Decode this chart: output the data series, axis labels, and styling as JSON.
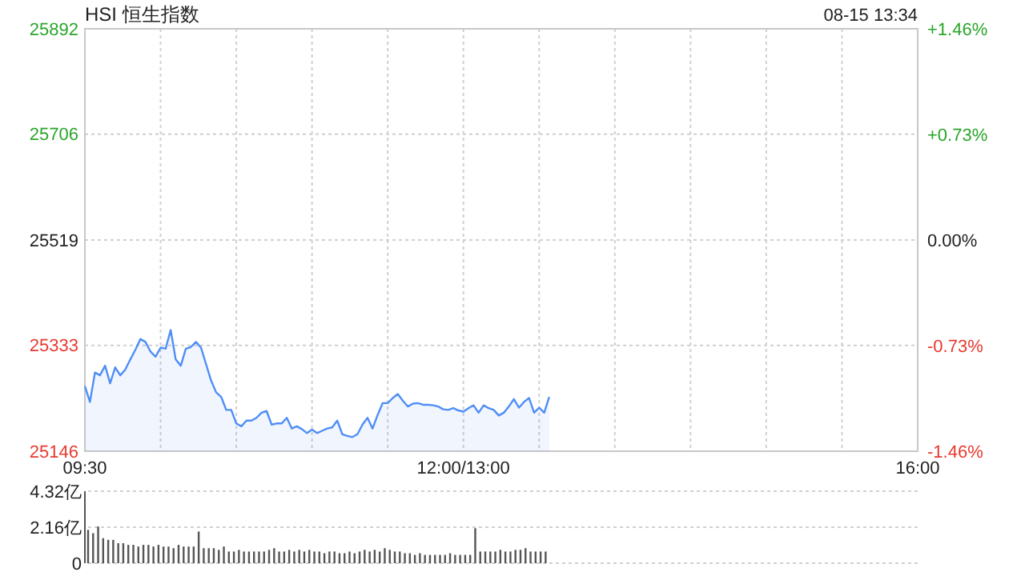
{
  "chart_data": [
    {
      "type": "area",
      "title": "HSI 恒生指数",
      "subtitle": "08-15 13:34",
      "categories": [
        "09:30",
        null,
        null,
        null,
        null,
        null,
        null,
        null,
        null,
        null,
        null,
        null,
        null,
        null,
        null,
        null,
        null,
        null,
        null,
        null,
        null,
        null,
        null,
        null,
        null,
        null,
        null,
        null,
        null,
        null,
        null,
        null,
        null,
        null,
        null,
        null,
        null,
        null,
        null,
        null,
        null,
        null,
        null,
        null,
        null,
        null,
        null,
        null,
        null,
        null,
        null,
        null,
        null,
        null,
        null,
        null,
        null,
        null,
        null,
        null,
        null,
        null,
        null,
        null,
        null,
        null,
        null,
        null,
        null,
        null,
        null,
        null,
        null,
        null,
        null,
        "12:00/13:00",
        null,
        null,
        null,
        null,
        null,
        null,
        null,
        null,
        null,
        null,
        null,
        null,
        null,
        null,
        null,
        null,
        null,
        null,
        null,
        null,
        null,
        null,
        null,
        null,
        null,
        null,
        null,
        null,
        null,
        null,
        null,
        null,
        null,
        null,
        null,
        null,
        null,
        null,
        null,
        null,
        null,
        null,
        null,
        null,
        null,
        null,
        null,
        null,
        null,
        null,
        null,
        null,
        null,
        null,
        null,
        null,
        null,
        null,
        null,
        null,
        null,
        null,
        null,
        null,
        null,
        null,
        null,
        null,
        null,
        null,
        null,
        null,
        null,
        null,
        null,
        null,
        null,
        null,
        null,
        null,
        null,
        null,
        null,
        null,
        null,
        null,
        null,
        null,
        null,
        "16:00"
      ],
      "ylim": [
        25146,
        25892
      ],
      "yticks": [
        25146,
        25333,
        25519,
        25706,
        25892
      ],
      "y2lim": [
        -1.46,
        1.46
      ],
      "y2ticks": [
        {
          "value": -1.46,
          "label": "-1.46%"
        },
        {
          "value": -0.73,
          "label": "-0.73%"
        },
        {
          "value": 0,
          "label": "0.00%"
        },
        {
          "value": 0.73,
          "label": "+0.73%"
        },
        {
          "value": 1.46,
          "label": "+1.46%"
        }
      ],
      "grid": true,
      "series": [
        {
          "color": "#4f8ef7",
          "values": [
            25261,
            25233,
            25285,
            25280,
            25297,
            25266,
            25294,
            25280,
            25290,
            25308,
            25325,
            25344,
            25339,
            25322,
            25313,
            25329,
            25327,
            25360,
            25308,
            25297,
            25327,
            25330,
            25339,
            25329,
            25300,
            25271,
            25250,
            25242,
            25219,
            25219,
            25195,
            25190,
            25200,
            25200,
            25205,
            25214,
            25217,
            25193,
            25195,
            25195,
            25205,
            25186,
            25190,
            25185,
            25178,
            25184,
            25178,
            25182,
            25186,
            25188,
            25200,
            25176,
            25173,
            25171,
            25176,
            25193,
            25205,
            25186,
            25210,
            25231,
            25231,
            25240,
            25247,
            25235,
            25225,
            25230,
            25231,
            25228,
            25228,
            25227,
            25225,
            25220,
            25219,
            25222,
            25218,
            25216,
            25222,
            25227,
            25214,
            25227,
            25222,
            25219,
            25209,
            25214,
            25225,
            25238,
            25223,
            25233,
            25240,
            25214,
            25223,
            25214,
            25242,
            null,
            null,
            null,
            null,
            null,
            null,
            null,
            null,
            null,
            null,
            null,
            null,
            null,
            null,
            null,
            null,
            null,
            null,
            null,
            null,
            null,
            null,
            null,
            null,
            null,
            null,
            null,
            null,
            null,
            null,
            null,
            null,
            null,
            null,
            null,
            null,
            null,
            null,
            null,
            null,
            null,
            null,
            null,
            null,
            null,
            null,
            null,
            null,
            null,
            null,
            null,
            null,
            null,
            null,
            null,
            null,
            null,
            null,
            null,
            null,
            null,
            null,
            null,
            null,
            null,
            null,
            null,
            null,
            null,
            null,
            null,
            null,
            null
          ]
        }
      ]
    },
    {
      "type": "bar",
      "categories": [
        null,
        null,
        null,
        null,
        null,
        null,
        null,
        null,
        null,
        null,
        null,
        null,
        null,
        null,
        null,
        null,
        null,
        null,
        null,
        null,
        null,
        null,
        null,
        null,
        null,
        null,
        null,
        null,
        null,
        null,
        null,
        null,
        null,
        null,
        null,
        null,
        null,
        null,
        null,
        null,
        null,
        null,
        null,
        null,
        null,
        null,
        null,
        null,
        null,
        null,
        null,
        null,
        null,
        null,
        null,
        null,
        null,
        null,
        null,
        null,
        null,
        null,
        null,
        null,
        null,
        null,
        null,
        null,
        null,
        null,
        null,
        null,
        null,
        null,
        null,
        null,
        null,
        null,
        null,
        null,
        null,
        null,
        null,
        null,
        null,
        null,
        null,
        null,
        null,
        null,
        null,
        null,
        null,
        null,
        null,
        null,
        null,
        null,
        null,
        null,
        null,
        null,
        null,
        null,
        null,
        null,
        null,
        null,
        null,
        null,
        null,
        null,
        null,
        null,
        null,
        null,
        null,
        null,
        null,
        null,
        null,
        null,
        null,
        null,
        null,
        null,
        null,
        null,
        null,
        null,
        null,
        null,
        null,
        null,
        null,
        null,
        null,
        null,
        null,
        null,
        null,
        null,
        null,
        null,
        null,
        null,
        null,
        null,
        null,
        null,
        null,
        null,
        null,
        null,
        null,
        null,
        null,
        null,
        null,
        null,
        null,
        null,
        null,
        null,
        null,
        null
      ],
      "ylim": [
        0,
        4.32
      ],
      "yticks": [
        0,
        {
          "value": 2.16,
          "label": "2.16亿"
        },
        {
          "value": 4.32,
          "label": "4.32亿"
        }
      ],
      "grid": "y",
      "tick_labels": "y",
      "series": [
        {
          "color": "#555555",
          "values": [
            2.0,
            1.8,
            2.2,
            1.5,
            1.4,
            1.4,
            1.2,
            1.2,
            1.1,
            1.1,
            1.0,
            1.1,
            1.1,
            1.0,
            1.1,
            1.0,
            1.0,
            0.9,
            1.1,
            1.0,
            1.0,
            1.0,
            1.9,
            0.9,
            0.9,
            0.9,
            0.8,
            1.0,
            0.7,
            0.7,
            0.8,
            0.7,
            0.7,
            0.7,
            0.7,
            0.7,
            0.8,
            0.9,
            0.7,
            0.7,
            0.8,
            0.7,
            0.8,
            0.7,
            0.8,
            0.7,
            0.7,
            0.6,
            0.7,
            0.7,
            0.6,
            0.6,
            0.7,
            0.6,
            0.7,
            0.8,
            0.7,
            0.8,
            0.7,
            0.9,
            0.8,
            0.7,
            0.7,
            0.6,
            0.6,
            0.5,
            0.6,
            0.5,
            0.5,
            0.5,
            0.5,
            0.5,
            0.6,
            0.5,
            0.5,
            0.5,
            0.5,
            2.1,
            0.7,
            0.7,
            0.7,
            0.7,
            0.8,
            0.7,
            0.7,
            0.8,
            0.8,
            0.9,
            0.7,
            0.7,
            0.7,
            0.7,
            null,
            null,
            null,
            null,
            null,
            null,
            null,
            null,
            null,
            null,
            null,
            null,
            null,
            null,
            null,
            null,
            null,
            null,
            null,
            null,
            null,
            null,
            null,
            null,
            null,
            null,
            null,
            null,
            null,
            null,
            null,
            null,
            null,
            null,
            null,
            null,
            null,
            null,
            null,
            null,
            null,
            null,
            null,
            null,
            null,
            null,
            null,
            null,
            null,
            null,
            null,
            null,
            null,
            null,
            null,
            null,
            null,
            null,
            null,
            null,
            null,
            null,
            null,
            null,
            null,
            null,
            null,
            null,
            null,
            null,
            null,
            null,
            null,
            null
          ]
        }
      ]
    }
  ]
}
